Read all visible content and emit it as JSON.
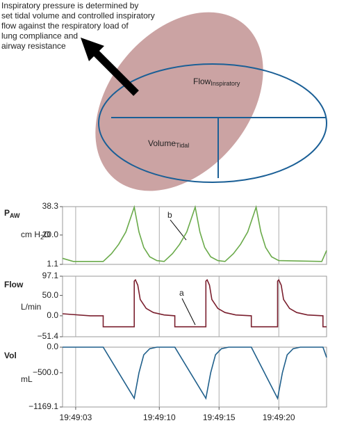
{
  "diagram": {
    "annotation": [
      "Inspiratory pressure is determined by",
      "set tidal volume and controlled inspiratory",
      "flow against the respiratory load of",
      "lung compliance and",
      "airway resistance"
    ],
    "flow_label": {
      "main": "Flow",
      "sub": "Inspiratory"
    },
    "volume_label": {
      "main": "Volume",
      "sub": "Tidal"
    }
  },
  "chart_data": [
    {
      "type": "line",
      "ylabel": {
        "main": "P",
        "sub": "AW"
      },
      "unit": {
        "text": "cm H",
        "sub": "2",
        "after": "O"
      },
      "annotation": "b",
      "xlim": [
        1.9,
        24.0
      ],
      "ylim": [
        1.1,
        38.3
      ],
      "yticks": [
        1.1,
        {
          "value": 20,
          "label": "20.0"
        },
        38.3
      ],
      "series": [
        {
          "color": "#6aaa4a",
          "x": [
            1.9,
            2.8,
            5.3,
            6.0,
            6.6,
            7.2,
            7.9,
            8.3,
            8.7,
            9.2,
            9.8,
            10.4,
            11.1,
            11.7,
            12.3,
            13.0,
            13.4,
            13.8,
            14.3,
            14.9,
            15.5,
            16.2,
            16.8,
            17.4,
            18.1,
            18.5,
            18.9,
            19.4,
            20.0,
            23.6,
            24.0
          ],
          "values": [
            5,
            3,
            3,
            8,
            14,
            22,
            38,
            22,
            12,
            6,
            3.5,
            3,
            8,
            14,
            22,
            38,
            22,
            12,
            6,
            3.5,
            3,
            8,
            14,
            22,
            38,
            22,
            12,
            6,
            3.5,
            3,
            10
          ]
        }
      ]
    },
    {
      "type": "line",
      "ylabel": {
        "main": "Flow"
      },
      "unit": {
        "text": "L/min"
      },
      "annotation": "a",
      "xlim": [
        1.9,
        24.0
      ],
      "ylim": [
        -51.4,
        97.1
      ],
      "yticks": [
        {
          "value": -51.4,
          "label": "−51.4"
        },
        {
          "value": 0,
          "label": "0.0"
        },
        {
          "value": 50,
          "label": "50.0"
        },
        97.1
      ],
      "series": [
        {
          "color": "#7a1f2e",
          "x": [
            1.9,
            4.2,
            5.3,
            5.3,
            7.9,
            7.9,
            8.0,
            8.2,
            8.4,
            8.9,
            9.5,
            10.4,
            11.3,
            11.3,
            13.9,
            13.9,
            14.0,
            14.2,
            14.4,
            14.9,
            15.5,
            16.4,
            17.7,
            17.7,
            19.9,
            19.9,
            20.0,
            20.2,
            20.4,
            20.9,
            21.5,
            22.4,
            23.7,
            23.7,
            24.0
          ],
          "values": [
            5,
            0,
            0,
            -27,
            -27,
            85,
            88,
            75,
            40,
            18,
            8,
            2,
            0,
            -27,
            -27,
            85,
            88,
            75,
            40,
            18,
            8,
            2,
            0,
            -27,
            -27,
            85,
            88,
            75,
            40,
            18,
            8,
            2,
            0,
            -27,
            -27
          ]
        }
      ]
    },
    {
      "type": "line",
      "ylabel": {
        "main": "Vol"
      },
      "unit": {
        "text": "mL"
      },
      "xlim": [
        1.9,
        24.0
      ],
      "ylim": [
        -1169.1,
        0
      ],
      "yticks": [
        {
          "value": -1169.1,
          "label": "−1169.1"
        },
        {
          "value": -500,
          "label": "−500.0"
        },
        {
          "value": 0,
          "label": "0.0"
        }
      ],
      "xticks": [
        {
          "value": 3,
          "label": "19:49:03"
        },
        {
          "value": 10,
          "label": "19:49:10"
        },
        {
          "value": 15,
          "label": "19:49:15"
        },
        {
          "value": 20,
          "label": "19:49:20"
        }
      ],
      "series": [
        {
          "color": "#1f5f8b",
          "x": [
            1.9,
            5.3,
            7.9,
            8.3,
            8.7,
            9.2,
            9.8,
            11.3,
            13.9,
            14.3,
            14.7,
            15.2,
            15.8,
            17.7,
            19.9,
            20.3,
            20.7,
            21.2,
            21.8,
            23.7,
            24.0
          ],
          "values": [
            0,
            0,
            -1000,
            -500,
            -150,
            -30,
            0,
            0,
            -1000,
            -500,
            -150,
            -30,
            0,
            0,
            -1000,
            -500,
            -150,
            -30,
            0,
            0,
            -200
          ]
        }
      ]
    }
  ]
}
